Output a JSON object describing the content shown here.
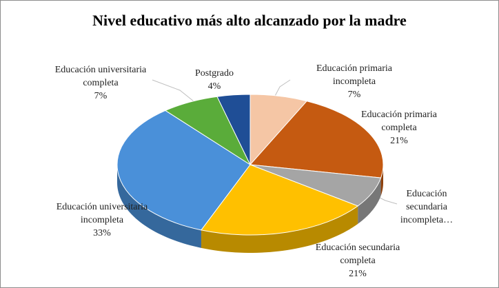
{
  "chart_data": {
    "type": "pie3d",
    "title": "Nivel educativo más alto alcanzado por la madre",
    "categories": [
      "Educación primaria incompleta",
      "Educación primaria completa",
      "Educación secundaria incompleta…",
      "Educación secundaria completa",
      "Educación universitaria incompleta",
      "Educación universitaria completa",
      "Postgrado"
    ],
    "values": [
      7,
      21,
      7,
      21,
      33,
      7,
      4
    ],
    "value_labels": [
      "7%",
      "21%",
      null,
      "21%",
      "33%",
      "7%",
      "4%"
    ],
    "colors": [
      "#f5c6a5",
      "#c55a11",
      "#a5a5a5",
      "#ffc000",
      "#4a90d9",
      "#5aac3a",
      "#1f4e96"
    ]
  }
}
